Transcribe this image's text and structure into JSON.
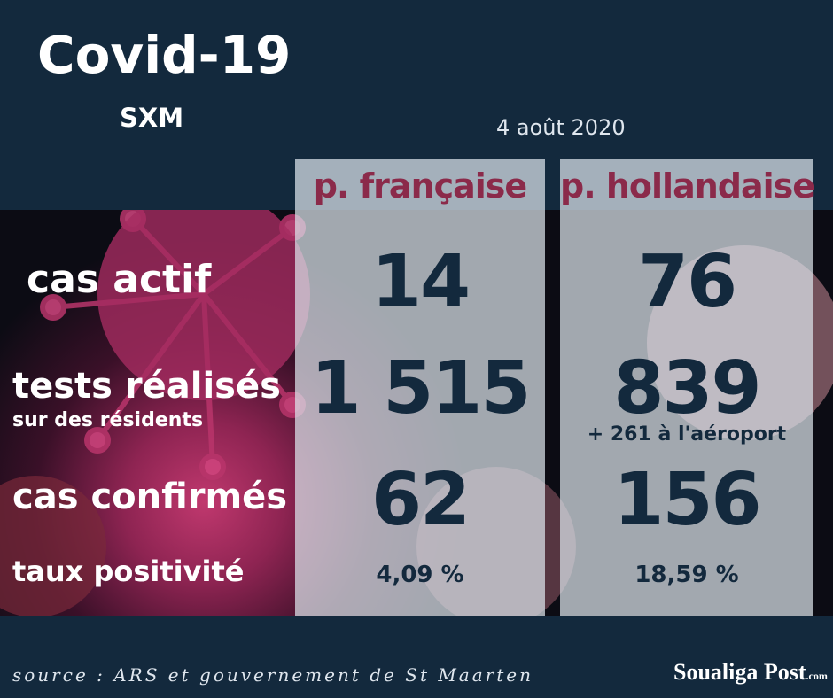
{
  "header": {
    "title": "Covid-19",
    "subtitle": "SXM",
    "date": "4 août 2020"
  },
  "table": {
    "columns": [
      "p. française",
      "p. hollandaise"
    ],
    "rows": [
      {
        "label": "cas actif",
        "values": [
          "14",
          "76"
        ]
      },
      {
        "label": "tests réalisés",
        "sublabel": "sur des résidents",
        "values": [
          "1 515",
          "839"
        ],
        "note": "+ 261 à l'aéroport"
      },
      {
        "label": "cas confirmés",
        "values": [
          "62",
          "156"
        ]
      },
      {
        "label": "taux positivité",
        "values": [
          "4,09 %",
          "18,59 %"
        ]
      }
    ]
  },
  "footer": {
    "source": "source : ARS et gouvernement de St Maarten",
    "brand": "Soualiga Post",
    "brand_suffix": ".com"
  }
}
